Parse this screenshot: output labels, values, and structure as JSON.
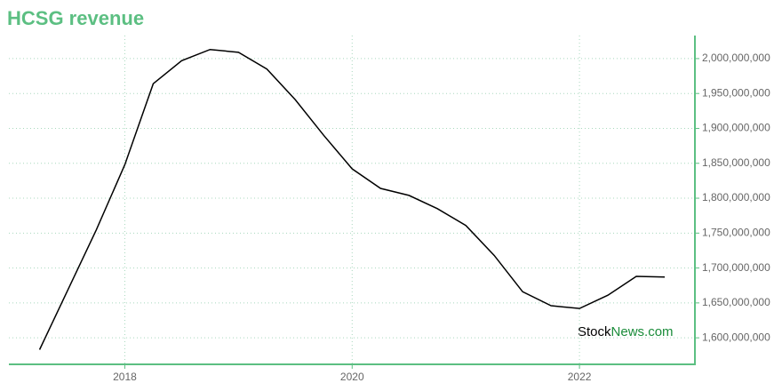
{
  "chart_data": {
    "type": "line",
    "title": "HCSG revenue",
    "x": [
      2017.25,
      2017.5,
      2017.75,
      2018,
      2018.25,
      2018.5,
      2018.75,
      2019,
      2019.25,
      2019.5,
      2019.75,
      2020,
      2020.25,
      2020.5,
      2020.75,
      2021,
      2021.25,
      2021.5,
      2021.75,
      2022,
      2022.25,
      2022.5,
      2022.75
    ],
    "series": [
      {
        "color": "#000000",
        "values": [
          1583000000,
          1669000000,
          1755000000,
          1848000000,
          1964000000,
          1997000000,
          2013000000,
          2009000000,
          1985000000,
          1941000000,
          1890000000,
          1842000000,
          1814000000,
          1804000000,
          1785000000,
          1761000000,
          1718000000,
          1666000000,
          1646000000,
          1642000000,
          1661000000,
          1688000000,
          1687000000
        ]
      }
    ],
    "xlim": [
      2016.98,
      2023
    ],
    "xticks": [
      2018,
      2020,
      2022
    ],
    "ylim": [
      1562000000,
      2033000000
    ],
    "yticks": [
      {
        "value": 1600000000,
        "label": "1,600,000,000"
      },
      {
        "value": 1650000000,
        "label": "1,650,000,000"
      },
      {
        "value": 1700000000,
        "label": "1,700,000,000"
      },
      {
        "value": 1750000000,
        "label": "1,750,000,000"
      },
      {
        "value": 1800000000,
        "label": "1,800,000,000"
      },
      {
        "value": 1850000000,
        "label": "1,850,000,000"
      },
      {
        "value": 1900000000,
        "label": "1,900,000,000"
      },
      {
        "value": 1950000000,
        "label": "1,950,000,000"
      },
      {
        "value": 2000000000,
        "label": "2,000,000,000"
      }
    ],
    "grid": true,
    "axis_color": "#5cbf82",
    "watermark": [
      "Stock",
      "News.com"
    ]
  }
}
